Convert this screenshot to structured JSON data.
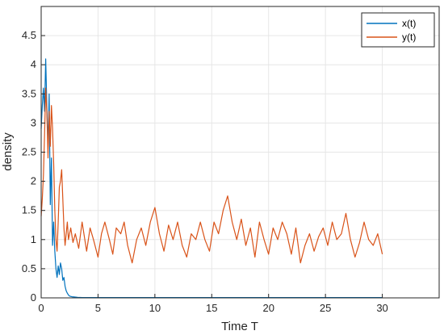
{
  "chart_data": {
    "type": "line",
    "xlabel": "Time T",
    "ylabel": "density",
    "xlim": [
      0,
      35
    ],
    "ylim": [
      0,
      5
    ],
    "xticks": [
      "0",
      "5",
      "10",
      "15",
      "20",
      "25",
      "30"
    ],
    "yticks": [
      "0",
      "0.5",
      "1",
      "1.5",
      "2",
      "2.5",
      "3",
      "3.5",
      "4",
      "4.5"
    ],
    "grid": true,
    "legend_position": "top-right",
    "series": [
      {
        "name": "x(t)",
        "color": "#0072BD",
        "x": [
          0,
          0.1,
          0.2,
          0.3,
          0.4,
          0.5,
          0.6,
          0.7,
          0.8,
          0.9,
          1.0,
          1.1,
          1.2,
          1.3,
          1.4,
          1.5,
          1.6,
          1.7,
          1.8,
          1.9,
          2.0,
          2.1,
          2.2,
          2.3,
          2.4,
          2.5,
          2.7,
          2.9,
          3.2,
          3.6,
          4.0,
          5,
          10,
          15,
          20,
          25,
          30
        ],
        "values": [
          2.9,
          3.3,
          3.6,
          3.2,
          4.1,
          3.3,
          2.6,
          3.5,
          1.6,
          2.4,
          0.9,
          1.3,
          0.8,
          0.5,
          0.35,
          0.55,
          0.4,
          0.6,
          0.5,
          0.3,
          0.35,
          0.2,
          0.12,
          0.08,
          0.05,
          0.03,
          0.02,
          0.015,
          0.01,
          0.005,
          0.005,
          0.005,
          0.005,
          0.005,
          0.005,
          0.005,
          0.005
        ]
      },
      {
        "name": "y(t)",
        "color": "#D95319",
        "x": [
          0,
          0.1,
          0.2,
          0.3,
          0.4,
          0.5,
          0.6,
          0.7,
          0.8,
          0.9,
          1.0,
          1.1,
          1.2,
          1.3,
          1.4,
          1.5,
          1.6,
          1.7,
          1.8,
          1.9,
          2.0,
          2.1,
          2.2,
          2.3,
          2.4,
          2.6,
          2.8,
          3.0,
          3.3,
          3.6,
          4.0,
          4.3,
          4.6,
          5.0,
          5.3,
          5.6,
          6.0,
          6.3,
          6.6,
          7.0,
          7.3,
          7.6,
          8.0,
          8.4,
          8.8,
          9.2,
          9.6,
          10.0,
          10.4,
          10.8,
          11.2,
          11.6,
          12.0,
          12.4,
          12.8,
          13.2,
          13.6,
          14.0,
          14.4,
          14.8,
          15.2,
          15.6,
          16.0,
          16.4,
          16.8,
          17.2,
          17.6,
          18.0,
          18.4,
          18.8,
          19.2,
          19.6,
          20.0,
          20.4,
          20.8,
          21.2,
          21.6,
          22.0,
          22.4,
          22.8,
          23.2,
          23.6,
          24.0,
          24.4,
          24.8,
          25.2,
          25.6,
          26.0,
          26.4,
          26.8,
          27.2,
          27.6,
          28.0,
          28.4,
          28.8,
          29.2,
          29.6,
          30.0
        ],
        "values": [
          1.4,
          1.7,
          2.1,
          2.8,
          3.6,
          3.2,
          2.4,
          3.2,
          2.6,
          3.3,
          2.9,
          2.3,
          1.5,
          1.0,
          0.8,
          1.3,
          1.9,
          2.0,
          2.2,
          1.7,
          1.2,
          0.9,
          1.1,
          1.3,
          1.0,
          1.2,
          0.95,
          1.1,
          0.85,
          1.3,
          0.8,
          1.2,
          1.0,
          0.7,
          1.1,
          1.3,
          1.0,
          0.75,
          1.2,
          1.1,
          1.3,
          0.9,
          0.6,
          1.0,
          1.2,
          0.9,
          1.3,
          1.55,
          1.1,
          0.8,
          1.25,
          1.0,
          1.3,
          0.9,
          0.7,
          1.1,
          1.0,
          1.3,
          1.0,
          0.8,
          1.3,
          1.1,
          1.5,
          1.75,
          1.3,
          1.0,
          1.35,
          0.9,
          1.2,
          0.7,
          1.3,
          1.0,
          0.75,
          1.2,
          1.0,
          1.3,
          1.1,
          0.75,
          1.2,
          0.6,
          0.9,
          1.1,
          0.8,
          1.05,
          1.2,
          0.9,
          1.3,
          1.0,
          1.1,
          1.45,
          1.0,
          0.7,
          0.95,
          1.3,
          1.0,
          0.9,
          1.1,
          0.75
        ]
      }
    ]
  }
}
